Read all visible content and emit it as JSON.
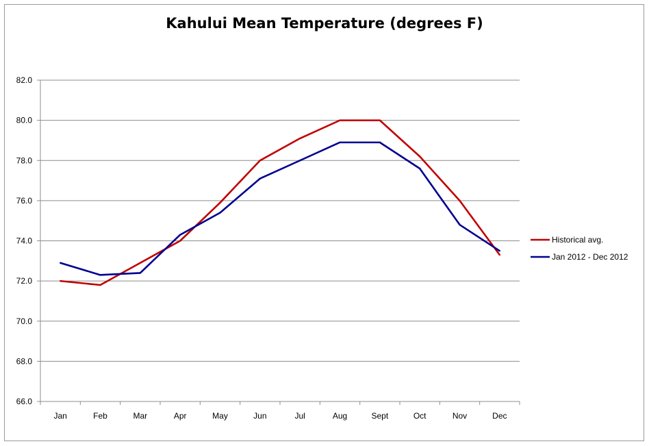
{
  "chart_data": {
    "type": "line",
    "title": "Kahului Mean Temperature (degrees F)",
    "xlabel": "",
    "ylabel": "",
    "categories": [
      "Jan",
      "Feb",
      "Mar",
      "Apr",
      "May",
      "Jun",
      "Jul",
      "Aug",
      "Sept",
      "Oct",
      "Nov",
      "Dec"
    ],
    "ylim": [
      66.0,
      82.0
    ],
    "yticks": [
      "66.0",
      "68.0",
      "70.0",
      "72.0",
      "74.0",
      "76.0",
      "78.0",
      "80.0",
      "82.0"
    ],
    "grid": true,
    "legend_position": "right",
    "series": [
      {
        "name": "Historical avg.",
        "color": "#c00000",
        "values": [
          72.0,
          71.8,
          72.9,
          74.0,
          75.9,
          78.0,
          79.1,
          80.0,
          80.0,
          78.2,
          76.0,
          73.3
        ]
      },
      {
        "name": "Jan 2012 - Dec 2012",
        "color": "#000090",
        "values": [
          72.9,
          72.3,
          72.4,
          74.3,
          75.4,
          77.1,
          78.0,
          78.9,
          78.9,
          77.6,
          74.8,
          73.5
        ]
      }
    ]
  }
}
